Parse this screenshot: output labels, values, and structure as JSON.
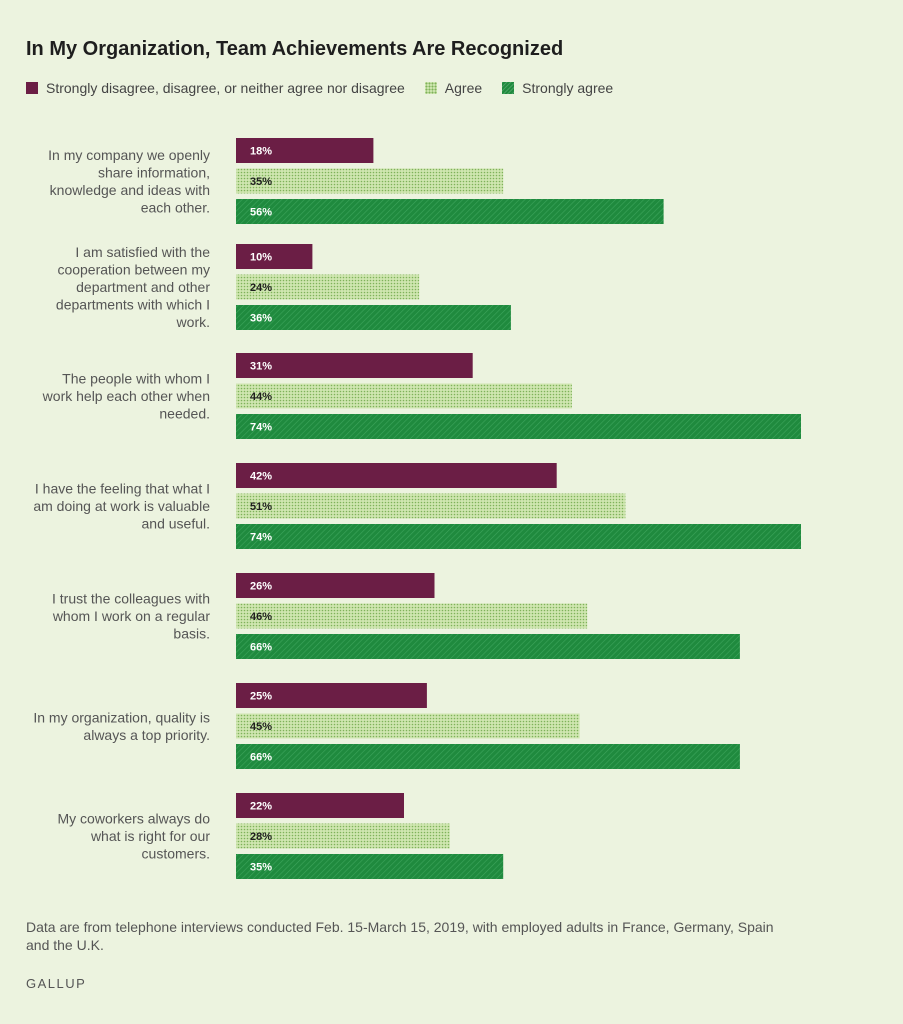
{
  "chart_data": {
    "type": "bar",
    "orientation": "horizontal",
    "title": "In My Organization, Team Achievements Are Recognized",
    "categories": [
      "In my company we openly share information, knowledge and ideas with each other.",
      "I am satisfied with the cooperation between my department and other departments with which I work.",
      "The people with whom I work help each other when needed.",
      "I have the feeling that what I am doing at work is valuable and useful.",
      "I trust the colleagues with whom I work on a regular basis.",
      "In my organization, quality is always a top priority.",
      "My coworkers always do what is right for our customers."
    ],
    "category_lines": [
      [
        "In my company we openly",
        "share information,",
        "knowledge and ideas with",
        "each other."
      ],
      [
        "I am satisfied with the",
        "cooperation between my",
        "department and other",
        "departments with which I",
        "work."
      ],
      [
        "The people with whom I",
        "work help each other when",
        "needed."
      ],
      [
        "I have the feeling that what I",
        "am doing at work is valuable",
        "and useful."
      ],
      [
        "I trust the colleagues with",
        "whom I work on a regular",
        "basis."
      ],
      [
        "In my organization, quality is",
        "always a top priority."
      ],
      [
        "My coworkers always do",
        "what is right for our",
        "customers."
      ]
    ],
    "series": [
      {
        "name": "Strongly disagree, disagree, or neither agree nor disagree",
        "color": "#6b1e45",
        "values": [
          18,
          10,
          31,
          42,
          26,
          25,
          22
        ]
      },
      {
        "name": "Agree",
        "color": "#a9d27f",
        "values": [
          35,
          24,
          44,
          51,
          46,
          45,
          28
        ]
      },
      {
        "name": "Strongly agree",
        "color": "#1f8a3e",
        "values": [
          56,
          36,
          74,
          74,
          66,
          66,
          35
        ]
      }
    ],
    "value_suffix": "%",
    "xlim": [
      0,
      74
    ],
    "legend_position": "top",
    "grid": false
  },
  "footnote": "Data are from telephone interviews conducted Feb. 15-March 15, 2019, with employed adults in France, Germany, Spain and the U.K.",
  "brand": "GALLUP"
}
